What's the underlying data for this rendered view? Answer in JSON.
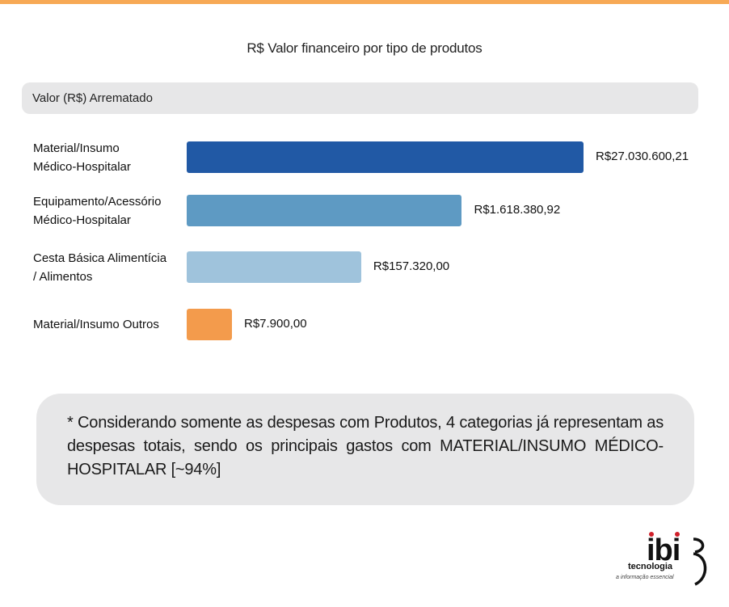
{
  "chart_data": {
    "type": "bar",
    "orientation": "horizontal",
    "title": "R$ Valor financeiro por tipo de produtos",
    "series_header": "Valor (R$) Arrematado",
    "categories": [
      [
        "Material/Insumo",
        "Médico-Hospitalar"
      ],
      [
        "Equipamento/Acessório",
        "Médico-Hospitalar"
      ],
      [
        "Cesta Básica Alimentícia",
        "/ Alimentos"
      ],
      [
        "Material/Insumo Outros"
      ]
    ],
    "values": [
      27030600.21,
      1618380.92,
      157320.0,
      7900.0
    ],
    "value_labels": [
      "R$27.030.600,21",
      "R$1.618.380,92",
      "R$157.320,00",
      "R$7.900,00"
    ],
    "colors": [
      "#2159a5",
      "#5e9ac3",
      "#9fc3dc",
      "#f39b4c"
    ],
    "scale": "log"
  },
  "note": "* Considerando somente as despesas com Produtos, 4 categorias já representam as despesas totais, sendo os principais gastos com MATERIAL/INSUMO MÉDICO-HOSPITALAR [~94%]",
  "logo": {
    "name": "ibi",
    "word": "tecnologia",
    "tagline": "a informação essencial"
  },
  "colors": {
    "accent_stripe": "#f7a955",
    "panel_gray": "#e7e7e8"
  }
}
